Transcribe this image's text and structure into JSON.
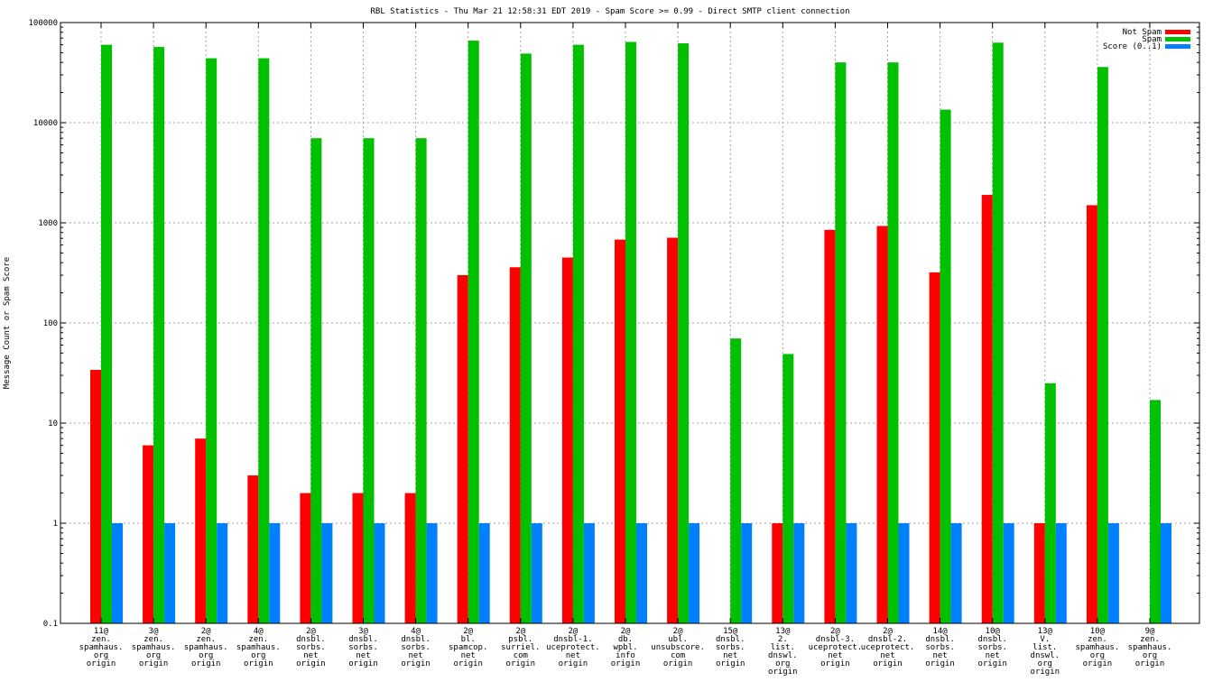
{
  "chart_data": {
    "type": "bar",
    "title": "RBL Statistics - Thu Mar 21 12:58:31 EDT 2019 - Spam Score >= 0.99 - Direct SMTP client connection",
    "ylabel": "Message Count or Spam Score",
    "xlabel": "",
    "yscale": "log",
    "ylim": [
      0.1,
      100000
    ],
    "yticks": [
      "0.1",
      "1",
      "10",
      "100",
      "1000",
      "10000",
      "100000"
    ],
    "grid": true,
    "legend_position": "top-right",
    "categories": [
      [
        "11@",
        "zen.",
        "spamhaus.",
        "org",
        "origin"
      ],
      [
        "3@",
        "zen.",
        "spamhaus.",
        "org",
        "origin"
      ],
      [
        "2@",
        "zen.",
        "spamhaus.",
        "org",
        "origin"
      ],
      [
        "4@",
        "zen.",
        "spamhaus.",
        "org",
        "origin"
      ],
      [
        "2@",
        "dnsbl.",
        "sorbs.",
        "net",
        "origin"
      ],
      [
        "3@",
        "dnsbl.",
        "sorbs.",
        "net",
        "origin"
      ],
      [
        "4@",
        "dnsbl.",
        "sorbs.",
        "net",
        "origin"
      ],
      [
        "2@",
        "bl.",
        "spamcop.",
        "net",
        "origin"
      ],
      [
        "2@",
        "psbl.",
        "surriel.",
        "com",
        "origin"
      ],
      [
        "2@",
        "dnsbl-1.",
        "uceprotect.",
        "net",
        "origin"
      ],
      [
        "2@",
        "db.",
        "wpbl.",
        "info",
        "origin"
      ],
      [
        "2@",
        "ubl.",
        "unsubscore.",
        "com",
        "origin"
      ],
      [
        "15@",
        "dnsbl.",
        "sorbs.",
        "net",
        "origin"
      ],
      [
        "13@",
        "2.",
        "list.",
        "dnswl.",
        "org",
        "origin"
      ],
      [
        "2@",
        "dnsbl-3.",
        "uceprotect.",
        "net",
        "origin"
      ],
      [
        "2@",
        "dnsbl-2.",
        "uceprotect.",
        "net",
        "origin"
      ],
      [
        "14@",
        "dnsbl.",
        "sorbs.",
        "net",
        "origin"
      ],
      [
        "10@",
        "dnsbl.",
        "sorbs.",
        "net",
        "origin"
      ],
      [
        "13@",
        "V.",
        "list.",
        "dnswl.",
        "org",
        "origin"
      ],
      [
        "10@",
        "zen.",
        "spamhaus.",
        "org",
        "origin"
      ],
      [
        "9@",
        "zen.",
        "spamhaus.",
        "org",
        "origin"
      ]
    ],
    "series": [
      {
        "name": "Not Spam",
        "color": "#ff0000",
        "values": [
          34,
          6,
          7,
          3,
          2,
          2,
          2,
          300,
          360,
          450,
          680,
          710,
          null,
          1,
          850,
          930,
          320,
          1900,
          1,
          1500,
          null
        ]
      },
      {
        "name": "Spam",
        "color": "#00c000",
        "values": [
          60000,
          57000,
          44000,
          44000,
          7000,
          7000,
          7000,
          66000,
          49000,
          60000,
          64000,
          62000,
          70,
          49,
          40000,
          40000,
          13500,
          63000,
          25,
          36000,
          17
        ]
      },
      {
        "name": "Score (0..1)",
        "color": "#0080ff",
        "values": [
          1,
          1,
          1,
          1,
          1,
          1,
          1,
          1,
          1,
          1,
          1,
          1,
          1,
          1,
          1,
          1,
          1,
          1,
          1,
          1,
          1
        ]
      }
    ]
  }
}
